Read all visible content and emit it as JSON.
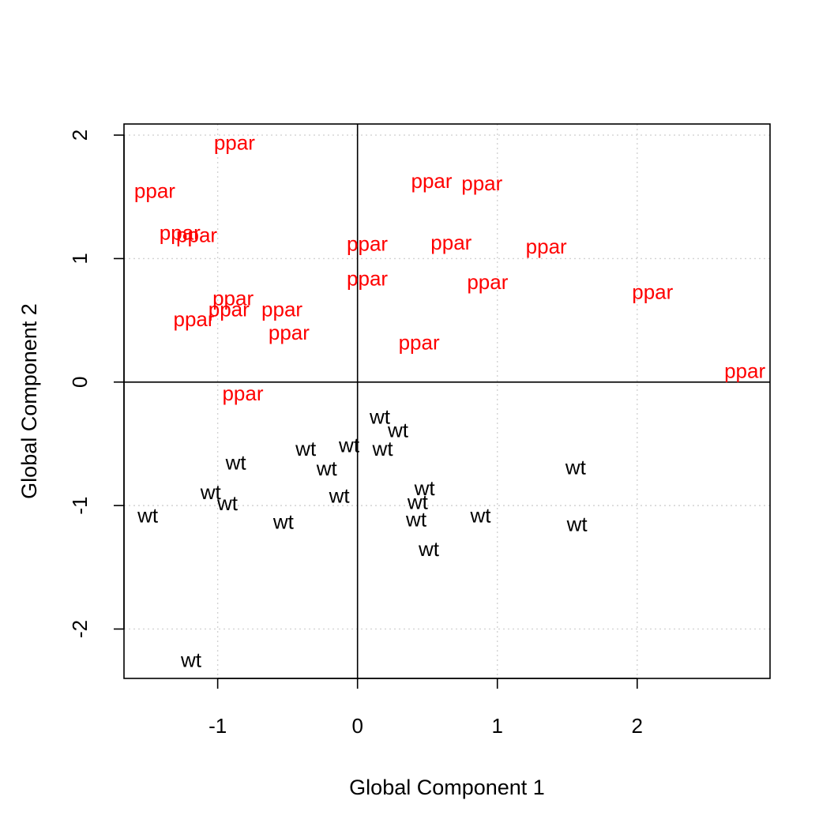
{
  "chart_data": {
    "type": "scatter",
    "title": "",
    "xlabel": "Global Component 1",
    "ylabel": "Global Component 2",
    "xlim": [
      -1.67,
      2.95
    ],
    "ylim": [
      -2.4,
      2.09
    ],
    "xticks": [
      -1,
      0,
      1,
      2
    ],
    "xtick_labels": [
      "-1",
      "0",
      "1",
      "2"
    ],
    "yticks": [
      -2,
      -1,
      0,
      1,
      2
    ],
    "ytick_labels": [
      "-2",
      "-1",
      "0",
      "1",
      "2"
    ],
    "grid": true,
    "zero_lines": true,
    "series": [
      {
        "name": "ppar",
        "color": "#ff0000",
        "points": [
          {
            "x": -0.88,
            "y": 1.94
          },
          {
            "x": -1.45,
            "y": 1.55
          },
          {
            "x": -1.27,
            "y": 1.21
          },
          {
            "x": -1.15,
            "y": 1.19
          },
          {
            "x": 0.53,
            "y": 1.63
          },
          {
            "x": 0.89,
            "y": 1.61
          },
          {
            "x": 0.07,
            "y": 1.12
          },
          {
            "x": 0.67,
            "y": 1.13
          },
          {
            "x": 1.35,
            "y": 1.1
          },
          {
            "x": 0.07,
            "y": 0.84
          },
          {
            "x": 0.93,
            "y": 0.81
          },
          {
            "x": -0.89,
            "y": 0.68
          },
          {
            "x": -0.92,
            "y": 0.59
          },
          {
            "x": -0.54,
            "y": 0.59
          },
          {
            "x": -1.17,
            "y": 0.51
          },
          {
            "x": -0.49,
            "y": 0.4
          },
          {
            "x": 0.44,
            "y": 0.32
          },
          {
            "x": 2.11,
            "y": 0.73
          },
          {
            "x": 2.77,
            "y": 0.09
          },
          {
            "x": -0.82,
            "y": -0.09
          }
        ]
      },
      {
        "name": "wt",
        "color": "#000000",
        "points": [
          {
            "x": 0.16,
            "y": -0.28
          },
          {
            "x": 0.29,
            "y": -0.39
          },
          {
            "x": -0.06,
            "y": -0.51
          },
          {
            "x": 0.18,
            "y": -0.54
          },
          {
            "x": -0.37,
            "y": -0.54
          },
          {
            "x": -0.87,
            "y": -0.65
          },
          {
            "x": -0.22,
            "y": -0.7
          },
          {
            "x": 1.56,
            "y": -0.69
          },
          {
            "x": 0.48,
            "y": -0.86
          },
          {
            "x": -1.05,
            "y": -0.89
          },
          {
            "x": -0.13,
            "y": -0.92
          },
          {
            "x": -0.93,
            "y": -0.98
          },
          {
            "x": 0.43,
            "y": -0.97
          },
          {
            "x": -1.5,
            "y": -1.08
          },
          {
            "x": 0.88,
            "y": -1.08
          },
          {
            "x": 0.42,
            "y": -1.11
          },
          {
            "x": -0.53,
            "y": -1.13
          },
          {
            "x": 1.57,
            "y": -1.15
          },
          {
            "x": 0.51,
            "y": -1.35
          },
          {
            "x": -1.19,
            "y": -2.25
          }
        ]
      }
    ]
  }
}
